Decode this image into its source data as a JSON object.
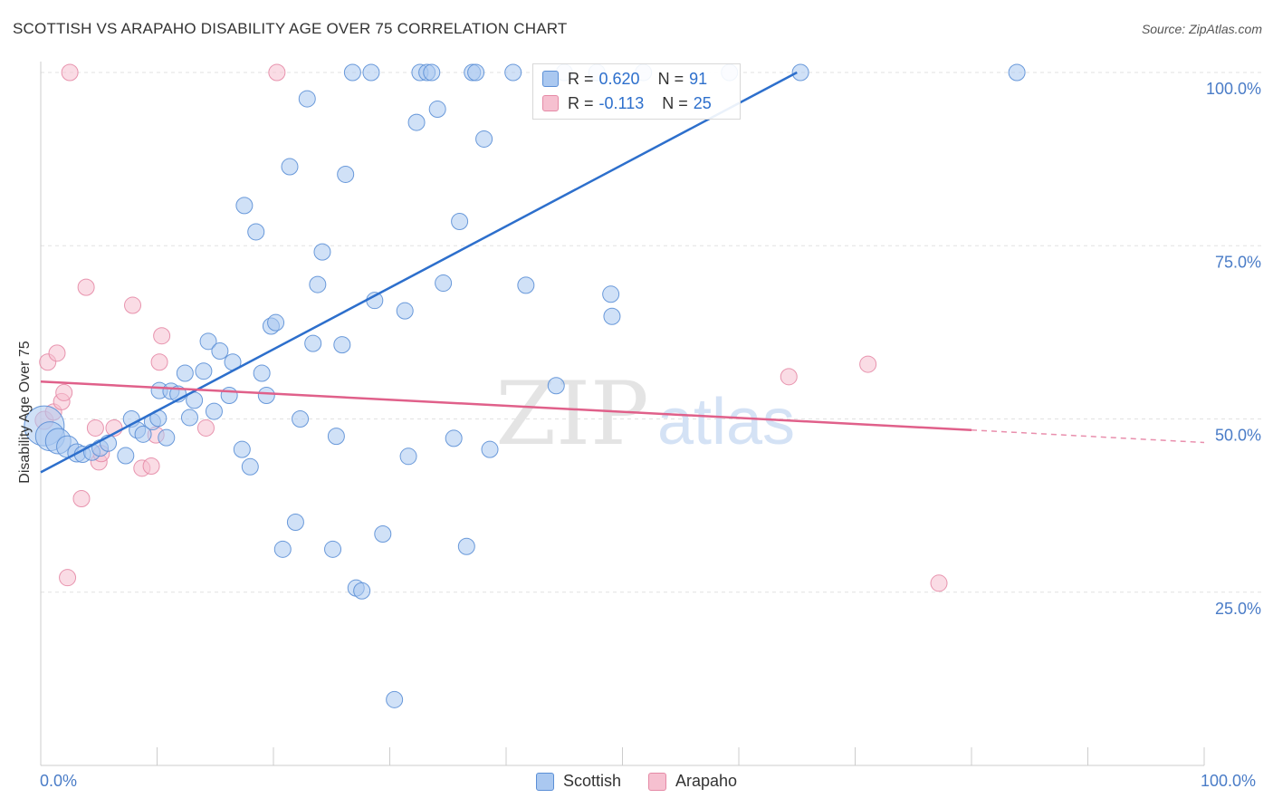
{
  "header": {
    "title": "SCOTTISH VS ARAPAHO DISABILITY AGE OVER 75 CORRELATION CHART",
    "source": "Source: ZipAtlas.com"
  },
  "watermark": {
    "zip": "ZIP",
    "atlas": "atlas"
  },
  "legend": {
    "r_label": "R =",
    "n_label": "N =",
    "scottish": {
      "r": "0.620",
      "n": "91"
    },
    "arapaho": {
      "r": "-0.113",
      "n": "25"
    }
  },
  "colors": {
    "scottish_fill": "#aac8f0",
    "scottish_stroke": "#5b8fd6",
    "scottish_line": "#2d6fcc",
    "arapaho_fill": "#f6c0d0",
    "arapaho_stroke": "#e58aa6",
    "arapaho_line": "#e0608a",
    "tick_text": "#4a7cc7"
  },
  "chart_data": {
    "type": "scatter",
    "ylabel": "Disability Age Over 75",
    "xlabel": "",
    "xlim": [
      0,
      100
    ],
    "ylim": [
      0,
      100
    ],
    "x_tick_labels": [
      "0.0%",
      "100.0%"
    ],
    "y_ticks": [
      25,
      50,
      75,
      100
    ],
    "y_tick_labels": [
      "25.0%",
      "50.0%",
      "75.0%",
      "100.0%"
    ],
    "grid": true,
    "legend_position": "top-center",
    "series": [
      {
        "name": "Scottish",
        "r": 0.62,
        "n": 91,
        "trend": {
          "x0": 0,
          "y0": 42.3,
          "x1": 65,
          "y1": 100
        },
        "points": [
          [
            0.3,
            49.0,
            22
          ],
          [
            0.8,
            47.5,
            16
          ],
          [
            1.5,
            46.8,
            14
          ],
          [
            2.3,
            46.0,
            12
          ],
          [
            3.1,
            45.1,
            10
          ],
          [
            3.6,
            44.9,
            9
          ],
          [
            4.4,
            45.2,
            9
          ],
          [
            5.1,
            45.8,
            9
          ],
          [
            5.8,
            46.5,
            9
          ],
          [
            7.3,
            44.7,
            9
          ],
          [
            7.8,
            50.0,
            9
          ],
          [
            8.3,
            48.4,
            9
          ],
          [
            8.8,
            47.8,
            9
          ],
          [
            9.6,
            49.6,
            9
          ],
          [
            10.1,
            50.1,
            9
          ],
          [
            10.2,
            54.1,
            9
          ],
          [
            10.8,
            47.3,
            9
          ],
          [
            11.2,
            54.0,
            9
          ],
          [
            11.8,
            53.6,
            9
          ],
          [
            12.4,
            56.6,
            9
          ],
          [
            12.8,
            50.2,
            9
          ],
          [
            13.2,
            52.7,
            9
          ],
          [
            14.0,
            56.9,
            9
          ],
          [
            14.4,
            61.2,
            9
          ],
          [
            14.9,
            51.1,
            9
          ],
          [
            15.4,
            59.8,
            9
          ],
          [
            16.2,
            53.4,
            9
          ],
          [
            16.5,
            58.2,
            9
          ],
          [
            17.3,
            45.6,
            9
          ],
          [
            17.5,
            80.8,
            9
          ],
          [
            18.0,
            43.1,
            9
          ],
          [
            18.5,
            77.0,
            9
          ],
          [
            19.0,
            56.6,
            9
          ],
          [
            19.4,
            53.4,
            9
          ],
          [
            19.8,
            63.4,
            9
          ],
          [
            20.2,
            63.9,
            9
          ],
          [
            20.8,
            31.2,
            9
          ],
          [
            21.4,
            86.4,
            9
          ],
          [
            21.9,
            35.1,
            9
          ],
          [
            22.3,
            50.0,
            9
          ],
          [
            22.9,
            96.2,
            9
          ],
          [
            23.4,
            60.9,
            9
          ],
          [
            23.8,
            69.4,
            9
          ],
          [
            24.2,
            74.1,
            9
          ],
          [
            25.1,
            31.2,
            9
          ],
          [
            25.4,
            47.5,
            9
          ],
          [
            25.9,
            60.7,
            9
          ],
          [
            26.2,
            85.3,
            9
          ],
          [
            26.8,
            100,
            9
          ],
          [
            27.1,
            25.6,
            9
          ],
          [
            27.6,
            25.2,
            9
          ],
          [
            28.4,
            100,
            9
          ],
          [
            28.7,
            67.1,
            9
          ],
          [
            29.4,
            33.4,
            9
          ],
          [
            30.4,
            9.5,
            9
          ],
          [
            31.3,
            65.6,
            9
          ],
          [
            31.6,
            44.6,
            9
          ],
          [
            32.3,
            92.8,
            9
          ],
          [
            32.6,
            100,
            9
          ],
          [
            33.2,
            100,
            9
          ],
          [
            33.6,
            100,
            9
          ],
          [
            34.1,
            94.7,
            9
          ],
          [
            34.6,
            69.6,
            9
          ],
          [
            35.5,
            47.2,
            9
          ],
          [
            36.0,
            78.5,
            9
          ],
          [
            36.6,
            31.6,
            9
          ],
          [
            37.1,
            100,
            9
          ],
          [
            37.4,
            100,
            9
          ],
          [
            38.1,
            90.4,
            9
          ],
          [
            38.6,
            45.6,
            9
          ],
          [
            40.6,
            100,
            9
          ],
          [
            41.7,
            69.3,
            9
          ],
          [
            44.3,
            54.8,
            9
          ],
          [
            45.0,
            100,
            9
          ],
          [
            47.8,
            100,
            9
          ],
          [
            49.0,
            68.0,
            9
          ],
          [
            49.1,
            64.8,
            9
          ],
          [
            51.8,
            100,
            9
          ],
          [
            59.2,
            100,
            9
          ],
          [
            65.3,
            100,
            9
          ],
          [
            83.9,
            100,
            9
          ]
        ]
      },
      {
        "name": "Arapaho",
        "r": -0.113,
        "n": 25,
        "trend": {
          "x0": 0,
          "y0": 55.4,
          "x1": 80,
          "y1": 48.4,
          "dash_to_x": 100,
          "dash_to_y": 46.6
        },
        "points": [
          [
            0.3,
            49.8,
            10
          ],
          [
            0.6,
            58.2,
            9
          ],
          [
            1.1,
            51.0,
            9
          ],
          [
            1.4,
            59.5,
            9
          ],
          [
            1.8,
            52.5,
            9
          ],
          [
            2.0,
            53.8,
            9
          ],
          [
            2.3,
            27.1,
            9
          ],
          [
            2.5,
            100,
            9
          ],
          [
            3.5,
            38.5,
            9
          ],
          [
            3.9,
            69.0,
            9
          ],
          [
            4.7,
            48.7,
            9
          ],
          [
            5.0,
            43.8,
            9
          ],
          [
            5.2,
            45.0,
            9
          ],
          [
            6.3,
            48.7,
            9
          ],
          [
            7.9,
            66.4,
            9
          ],
          [
            8.7,
            42.9,
            9
          ],
          [
            9.5,
            43.2,
            9
          ],
          [
            9.9,
            47.7,
            9
          ],
          [
            10.2,
            58.2,
            9
          ],
          [
            10.4,
            62.0,
            9
          ],
          [
            14.2,
            48.7,
            9
          ],
          [
            20.3,
            100,
            9
          ],
          [
            64.3,
            56.1,
            9
          ],
          [
            71.1,
            57.9,
            9
          ],
          [
            77.2,
            26.3,
            9
          ]
        ]
      }
    ]
  }
}
